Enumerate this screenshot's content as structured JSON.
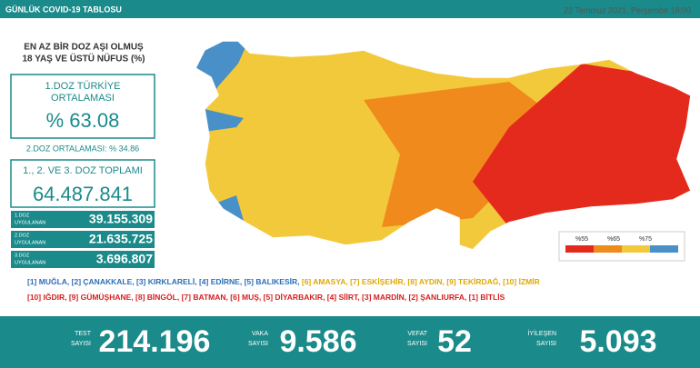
{
  "header": {
    "title": "GÜNLÜK COVID-19 TABLOSU",
    "date": "22 Temmuz 2021, Perşembe 19:00"
  },
  "vaccination": {
    "title_line1": "EN AZ BİR DOZ AŞI OLMUŞ",
    "title_line2": "18 YAŞ VE ÜSTÜ NÜFUS (%)",
    "dose1_avg_line1": "1.DOZ TÜRKİYE",
    "dose1_avg_line2": "ORTALAMASI",
    "dose1_avg_value": "% 63.08",
    "dose2_avg": "2.DOZ ORTALAMASI: % 34.86",
    "total_label": "1., 2. VE 3. DOZ TOPLAMI",
    "total_value": "64.487.841",
    "rows": [
      {
        "label1": "1.DOZ",
        "label2": "UYGULANAN",
        "value": "39.155.309"
      },
      {
        "label1": "2.DOZ",
        "label2": "UYGULANAN",
        "value": "21.635.725"
      },
      {
        "label1": "3.DOZ",
        "label2": "UYGULANAN",
        "value": "3.696.807"
      }
    ]
  },
  "map_legend": [
    "%55",
    "%65",
    "%75"
  ],
  "top_list_blue": [
    "[1] MUĞLA,",
    "[2] ÇANAKKALE,",
    "[3] KIRKLARELİ,",
    "[4] EDİRNE,",
    "[5] BALIKESİR,"
  ],
  "top_list_yellow": [
    "[6] AMASYA,",
    "[7] ESKİŞEHİR,",
    "[8] AYDIN,",
    "[9] TEKİRDAĞ,",
    "[10] İZMİR"
  ],
  "bottom_list_red": [
    "[10] IĞDIR,",
    "[9] GÜMÜŞHANE,",
    "[8] BİNGÖL,",
    "[7] BATMAN,",
    "[6] MUŞ,",
    "[5] DİYARBAKIR,",
    "[4] SİİRT,",
    "[3] MARDİN,",
    "[2] ŞANLIURFA,",
    "[1] BİTLİS"
  ],
  "stats": [
    {
      "label1": "TEST",
      "label2": "SAYISI",
      "value": "214.196"
    },
    {
      "label1": "VAKA",
      "label2": "SAYISI",
      "value": "9.586"
    },
    {
      "label1": "VEFAT",
      "label2": "SAYISI",
      "value": "52"
    },
    {
      "label1": "İYİLEŞEN",
      "label2": "SAYISI",
      "value": "5.093"
    }
  ]
}
